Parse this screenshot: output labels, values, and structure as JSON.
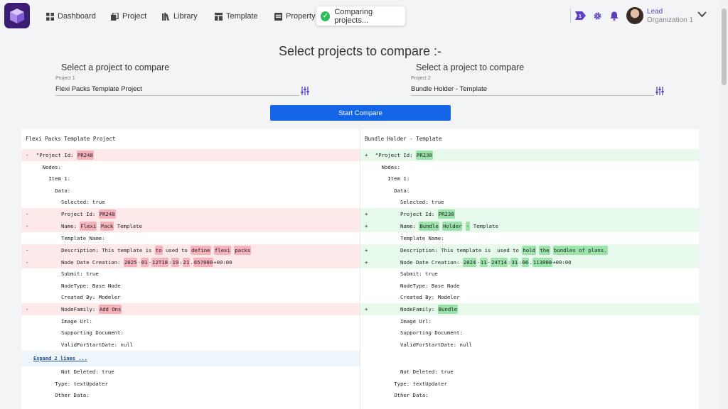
{
  "nav": {
    "items": [
      {
        "label": "Dashboard",
        "icon": "dashboard-icon"
      },
      {
        "label": "Project",
        "icon": "project-icon"
      },
      {
        "label": "Library",
        "icon": "library-icon"
      },
      {
        "label": "Template",
        "icon": "template-icon"
      },
      {
        "label": "Property",
        "icon": "property-icon"
      }
    ]
  },
  "toast": {
    "message": "Comparing projects..."
  },
  "user": {
    "name": "Lead",
    "org": "Organization 1"
  },
  "colors": {
    "brand": "#3b1d72",
    "accent": "#1565e8",
    "removed": "#fde8ea",
    "added": "#e6f9ea"
  },
  "page": {
    "title": "Select projects to compare :-"
  },
  "select": {
    "left": {
      "title": "Select a project to compare",
      "label": "Project 1",
      "value": "Flexi Packs Template Project"
    },
    "right": {
      "title": "Select a project to compare",
      "label": "Project 2",
      "value": "Bundle Holder - Template"
    }
  },
  "compare_button": "Start Compare",
  "diff": {
    "left_header": "Flexi Packs Template Project",
    "right_header": "Bundle Holder - Template",
    "expand_label": "Expand 2 lines ...",
    "rows": [
      {
        "type": "change",
        "indent": 2,
        "l": [
          {
            "t": "\"Project Id: "
          },
          {
            "t": "PR248",
            "h": 1
          }
        ],
        "r": [
          {
            "t": "\"Project Id: "
          },
          {
            "t": "PR230",
            "h": 1
          }
        ]
      },
      {
        "type": "same",
        "indent": 4,
        "text": "Nodes:"
      },
      {
        "type": "same",
        "indent": 6,
        "text": "Item 1:"
      },
      {
        "type": "same",
        "indent": 8,
        "text": "Data:"
      },
      {
        "type": "same",
        "indent": 10,
        "text": "Selected: true"
      },
      {
        "type": "change",
        "indent": 10,
        "l": [
          {
            "t": "Project Id: "
          },
          {
            "t": "PR248",
            "h": 1
          }
        ],
        "r": [
          {
            "t": "Project Id: "
          },
          {
            "t": "PR230",
            "h": 1
          }
        ]
      },
      {
        "type": "change",
        "indent": 10,
        "l": [
          {
            "t": "Name: "
          },
          {
            "t": "Flexi",
            "h": 1
          },
          {
            "t": " "
          },
          {
            "t": "Pack",
            "h": 1
          },
          {
            "t": " Template"
          }
        ],
        "r": [
          {
            "t": "Name: "
          },
          {
            "t": "Bundle",
            "h": 1
          },
          {
            "t": " "
          },
          {
            "t": "Holder",
            "h": 1
          },
          {
            "t": " "
          },
          {
            "t": "-",
            "h": 1
          },
          {
            "t": " Template"
          }
        ]
      },
      {
        "type": "same",
        "indent": 10,
        "text": "Template Name:"
      },
      {
        "type": "change",
        "indent": 10,
        "l": [
          {
            "t": "Description: This template is "
          },
          {
            "t": "to",
            "h": 1
          },
          {
            "t": " used to "
          },
          {
            "t": "define",
            "h": 1
          },
          {
            "t": " "
          },
          {
            "t": "flexi",
            "h": 1
          },
          {
            "t": " "
          },
          {
            "t": "packs",
            "h": 1
          }
        ],
        "r": [
          {
            "t": "Description: This template is  used to "
          },
          {
            "t": "hold",
            "h": 1
          },
          {
            "t": " "
          },
          {
            "t": "the",
            "h": 1
          },
          {
            "t": " "
          },
          {
            "t": "bundles of plans.",
            "h": 1
          }
        ]
      },
      {
        "type": "change",
        "indent": 10,
        "l": [
          {
            "t": "Node Date Creation: "
          },
          {
            "t": "2025",
            "h": 1
          },
          {
            "t": "-"
          },
          {
            "t": "01",
            "h": 1
          },
          {
            "t": "-"
          },
          {
            "t": "12T18",
            "h": 1
          },
          {
            "t": ":"
          },
          {
            "t": "19",
            "h": 1
          },
          {
            "t": ":"
          },
          {
            "t": "21",
            "h": 1
          },
          {
            "t": "."
          },
          {
            "t": "657000",
            "h": 1
          },
          {
            "t": "+00:00"
          }
        ],
        "r": [
          {
            "t": "Node Date Creation: "
          },
          {
            "t": "2024",
            "h": 1
          },
          {
            "t": "-"
          },
          {
            "t": "11",
            "h": 1
          },
          {
            "t": "-"
          },
          {
            "t": "24T14",
            "h": 1
          },
          {
            "t": ":"
          },
          {
            "t": "31",
            "h": 1
          },
          {
            "t": ":"
          },
          {
            "t": "06",
            "h": 1
          },
          {
            "t": "."
          },
          {
            "t": "113000",
            "h": 1
          },
          {
            "t": "+00:00"
          }
        ]
      },
      {
        "type": "same",
        "indent": 10,
        "text": "Submit: true"
      },
      {
        "type": "same",
        "indent": 10,
        "text": "NodeType: Base Node"
      },
      {
        "type": "same",
        "indent": 10,
        "text": "Created By: Modeler"
      },
      {
        "type": "change",
        "indent": 10,
        "l": [
          {
            "t": "NodeFamily: "
          },
          {
            "t": "Add Ons",
            "h": 1
          }
        ],
        "r": [
          {
            "t": "NodeFamily: "
          },
          {
            "t": "Bundle",
            "h": 1
          }
        ]
      },
      {
        "type": "same",
        "indent": 10,
        "text": "Image Url:"
      },
      {
        "type": "same",
        "indent": 10,
        "text": "Supporting Document:"
      },
      {
        "type": "same",
        "indent": 10,
        "text": "ValidForStartDate: null"
      },
      {
        "type": "expand"
      },
      {
        "type": "same",
        "indent": 10,
        "text": "Not Deleted: true"
      },
      {
        "type": "same",
        "indent": 8,
        "text": "Type: textUpdater"
      },
      {
        "type": "same",
        "indent": 8,
        "text": "Other Data:"
      }
    ]
  }
}
